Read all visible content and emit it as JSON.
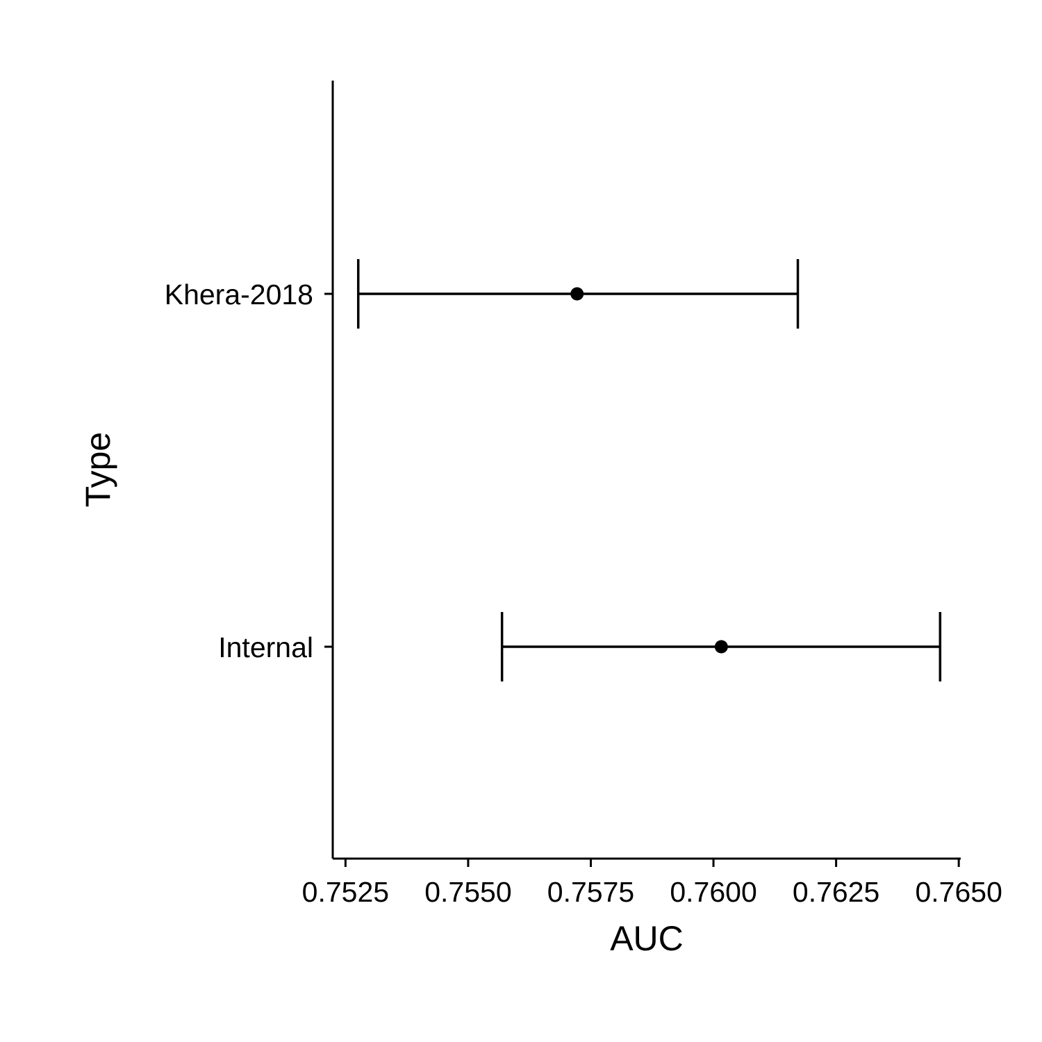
{
  "chart_data": {
    "type": "errorbar",
    "title": "",
    "xlabel": "AUC",
    "ylabel": "Type",
    "xlim": [
      0.75224,
      0.76504
    ],
    "x_ticks": [
      0.7525,
      0.755,
      0.7575,
      0.76,
      0.7625,
      0.765
    ],
    "x_tick_labels": [
      "0.7525",
      "0.7550",
      "0.7575",
      "0.7600",
      "0.7625",
      "0.7650"
    ],
    "categories": [
      "Khera-2018",
      "Internal"
    ],
    "series": [
      {
        "points": [
          {
            "category": "Khera-2018",
            "estimate": 0.75722,
            "lower": 0.75276,
            "upper": 0.76172
          },
          {
            "category": "Internal",
            "estimate": 0.76016,
            "lower": 0.75569,
            "upper": 0.76462
          }
        ]
      }
    ],
    "grid": false,
    "legend": "none",
    "colors": {
      "line": "#000000",
      "point": "#000000"
    }
  }
}
